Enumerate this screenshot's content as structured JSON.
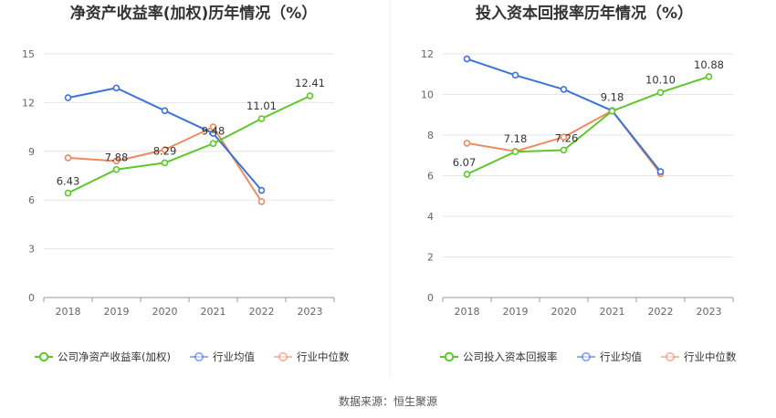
{
  "source": "数据来源：恒生聚源",
  "chart_data": [
    {
      "type": "line",
      "title": "净资产收益率(加权)历年情况（%）",
      "categories": [
        "2018",
        "2019",
        "2020",
        "2021",
        "2022",
        "2023"
      ],
      "ylim": [
        0,
        15
      ],
      "yticks": [
        "0",
        "3",
        "6",
        "9",
        "12",
        "15"
      ],
      "grid": true,
      "legend_position": "bottom",
      "series": [
        {
          "name": "公司净资产收益率(加权)",
          "color": "#5dc829",
          "values": [
            6.43,
            7.88,
            8.29,
            9.48,
            11.01,
            12.41
          ],
          "labels": [
            "6.43",
            "7.88",
            "8.29",
            "9.48",
            "11.01",
            "12.41"
          ]
        },
        {
          "name": "行业均值",
          "color": "#3b73d8",
          "values": [
            12.3,
            12.9,
            11.5,
            10.1,
            6.6,
            null
          ]
        },
        {
          "name": "行业中位数",
          "color": "#f08a5d",
          "values": [
            8.6,
            8.4,
            9.1,
            10.5,
            5.9,
            null
          ]
        }
      ]
    },
    {
      "type": "line",
      "title": "投入资本回报率历年情况（%）",
      "categories": [
        "2018",
        "2019",
        "2020",
        "2021",
        "2022",
        "2023"
      ],
      "ylim": [
        0,
        12
      ],
      "yticks": [
        "0",
        "2",
        "4",
        "6",
        "8",
        "10",
        "12"
      ],
      "grid": true,
      "legend_position": "bottom",
      "series": [
        {
          "name": "公司投入资本回报率",
          "color": "#5dc829",
          "values": [
            6.07,
            7.18,
            7.26,
            9.18,
            10.1,
            10.88
          ],
          "labels": [
            "6.07",
            "7.18",
            "7.26",
            "9.18",
            "10.10",
            "10.88"
          ]
        },
        {
          "name": "行业均值",
          "color": "#3b73d8",
          "values": [
            11.75,
            10.95,
            10.25,
            9.2,
            6.2,
            null
          ]
        },
        {
          "name": "行业中位数",
          "color": "#f08a5d",
          "values": [
            7.6,
            7.2,
            7.9,
            9.2,
            6.1,
            null
          ]
        }
      ]
    }
  ]
}
